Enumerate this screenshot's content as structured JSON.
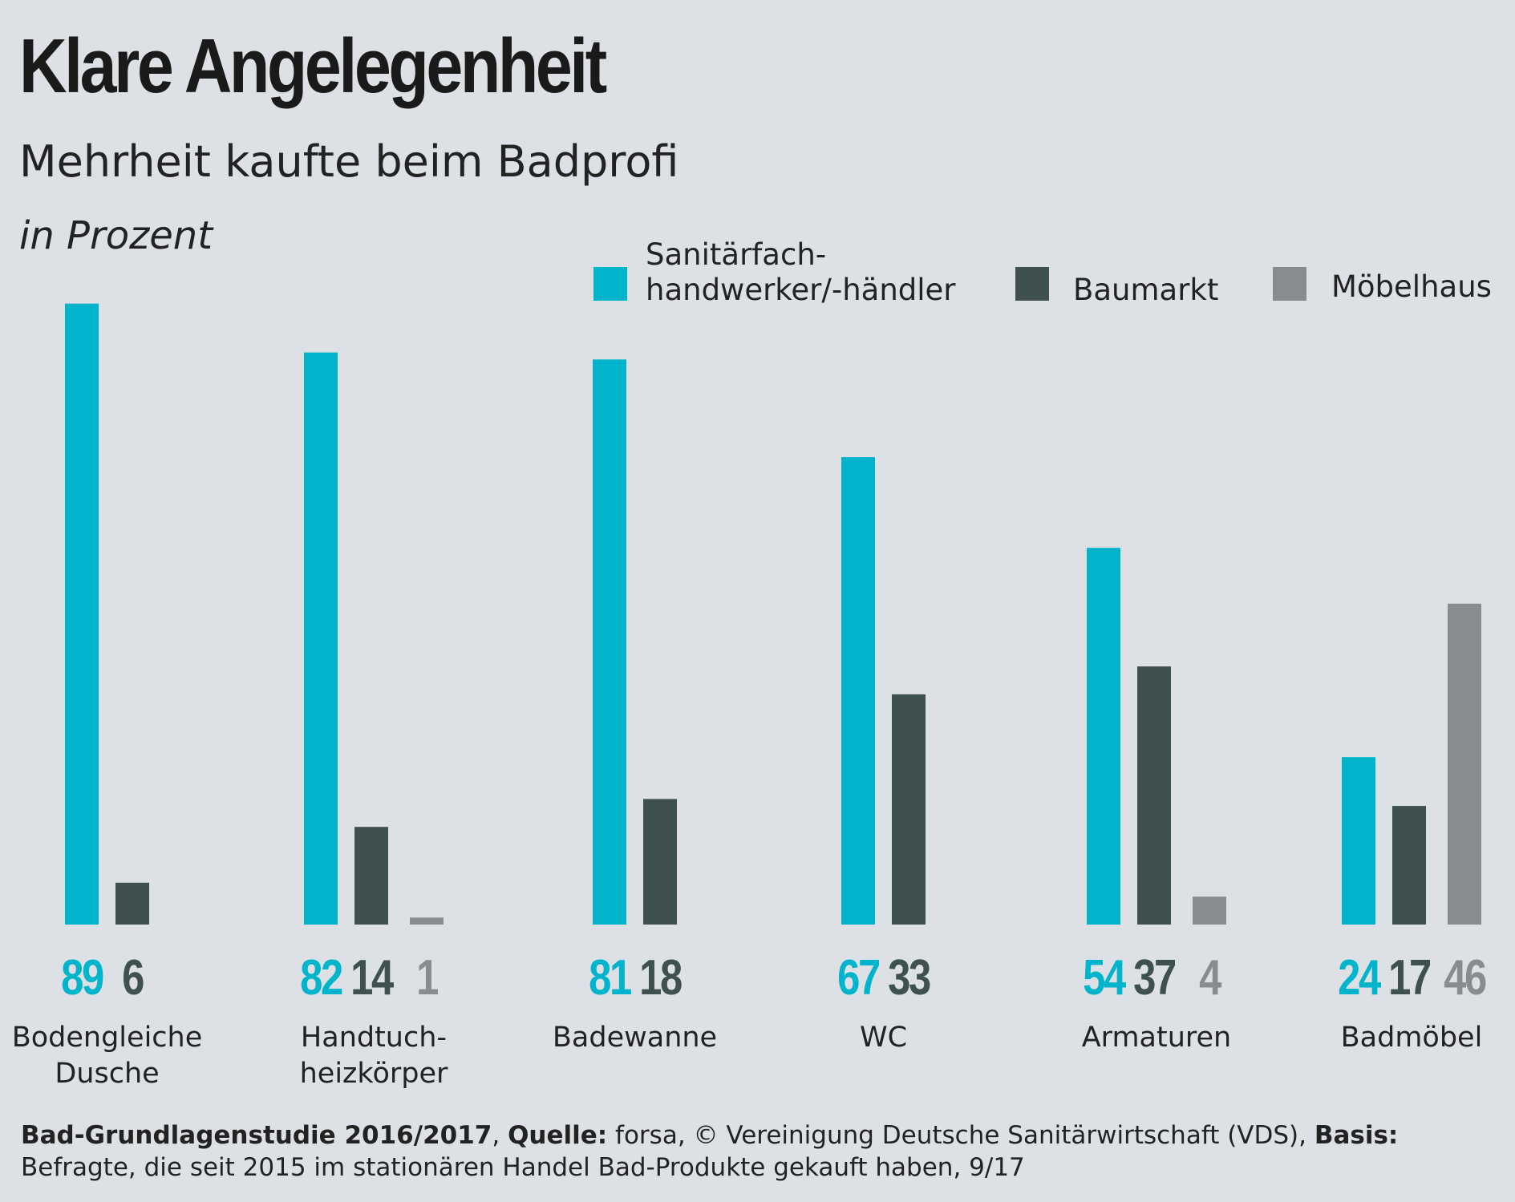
{
  "title": "Klare Angelegenheit",
  "subtitle": "Mehrheit kaufte beim Badprofi",
  "unit": "in Prozent",
  "colors": {
    "background": "#dde0e4",
    "sanitaer": "#00b4cb",
    "baumarkt": "#3e5050",
    "moebelhaus": "#888c90"
  },
  "legend": [
    {
      "label_line1": "Sanitärfach-",
      "label_line2": "handwerker/-händler",
      "color": "#00b4cb"
    },
    {
      "label_line1": "Baumarkt",
      "label_line2": "",
      "color": "#3e5050"
    },
    {
      "label_line1": "Möbelhaus",
      "label_line2": "",
      "color": "#888c90"
    }
  ],
  "chart_data": {
    "type": "bar",
    "categories": [
      "Bodengleiche Dusche",
      "Handtuch- heizkörper",
      "Badewanne",
      "WC",
      "Armaturen",
      "Badmöbel"
    ],
    "category_lines": [
      [
        "Bodengleiche",
        "Dusche"
      ],
      [
        "Handtuch-",
        "heizkörper"
      ],
      [
        "Badewanne"
      ],
      [
        "WC"
      ],
      [
        "Armaturen"
      ],
      [
        "Badmöbel"
      ]
    ],
    "series": [
      {
        "name": "Sanitärfach- handwerker/-händler",
        "color": "#00b4cb",
        "values": [
          89,
          82,
          81,
          67,
          54,
          24
        ]
      },
      {
        "name": "Baumarkt",
        "color": "#3e5050",
        "values": [
          6,
          14,
          18,
          33,
          37,
          17
        ]
      },
      {
        "name": "Möbelhaus",
        "color": "#888c90",
        "values": [
          null,
          1,
          null,
          null,
          4,
          46
        ]
      }
    ],
    "ylabel": "in Prozent",
    "grid": false,
    "legend_position": "top-right",
    "data_labels": true
  },
  "footer": {
    "study_bold": "Bad-Grundlagenstudie 2016/2017",
    "sep1": ", ",
    "source_label": "Quelle:",
    "source_text": " forsa, © Vereinigung Deutsche Sanitärwirtschaft (VDS), ",
    "basis_label": "Basis:",
    "basis_text": " Befragte, die seit 2015 im stationären Handel Bad-Produkte gekauft haben, 9/17"
  }
}
